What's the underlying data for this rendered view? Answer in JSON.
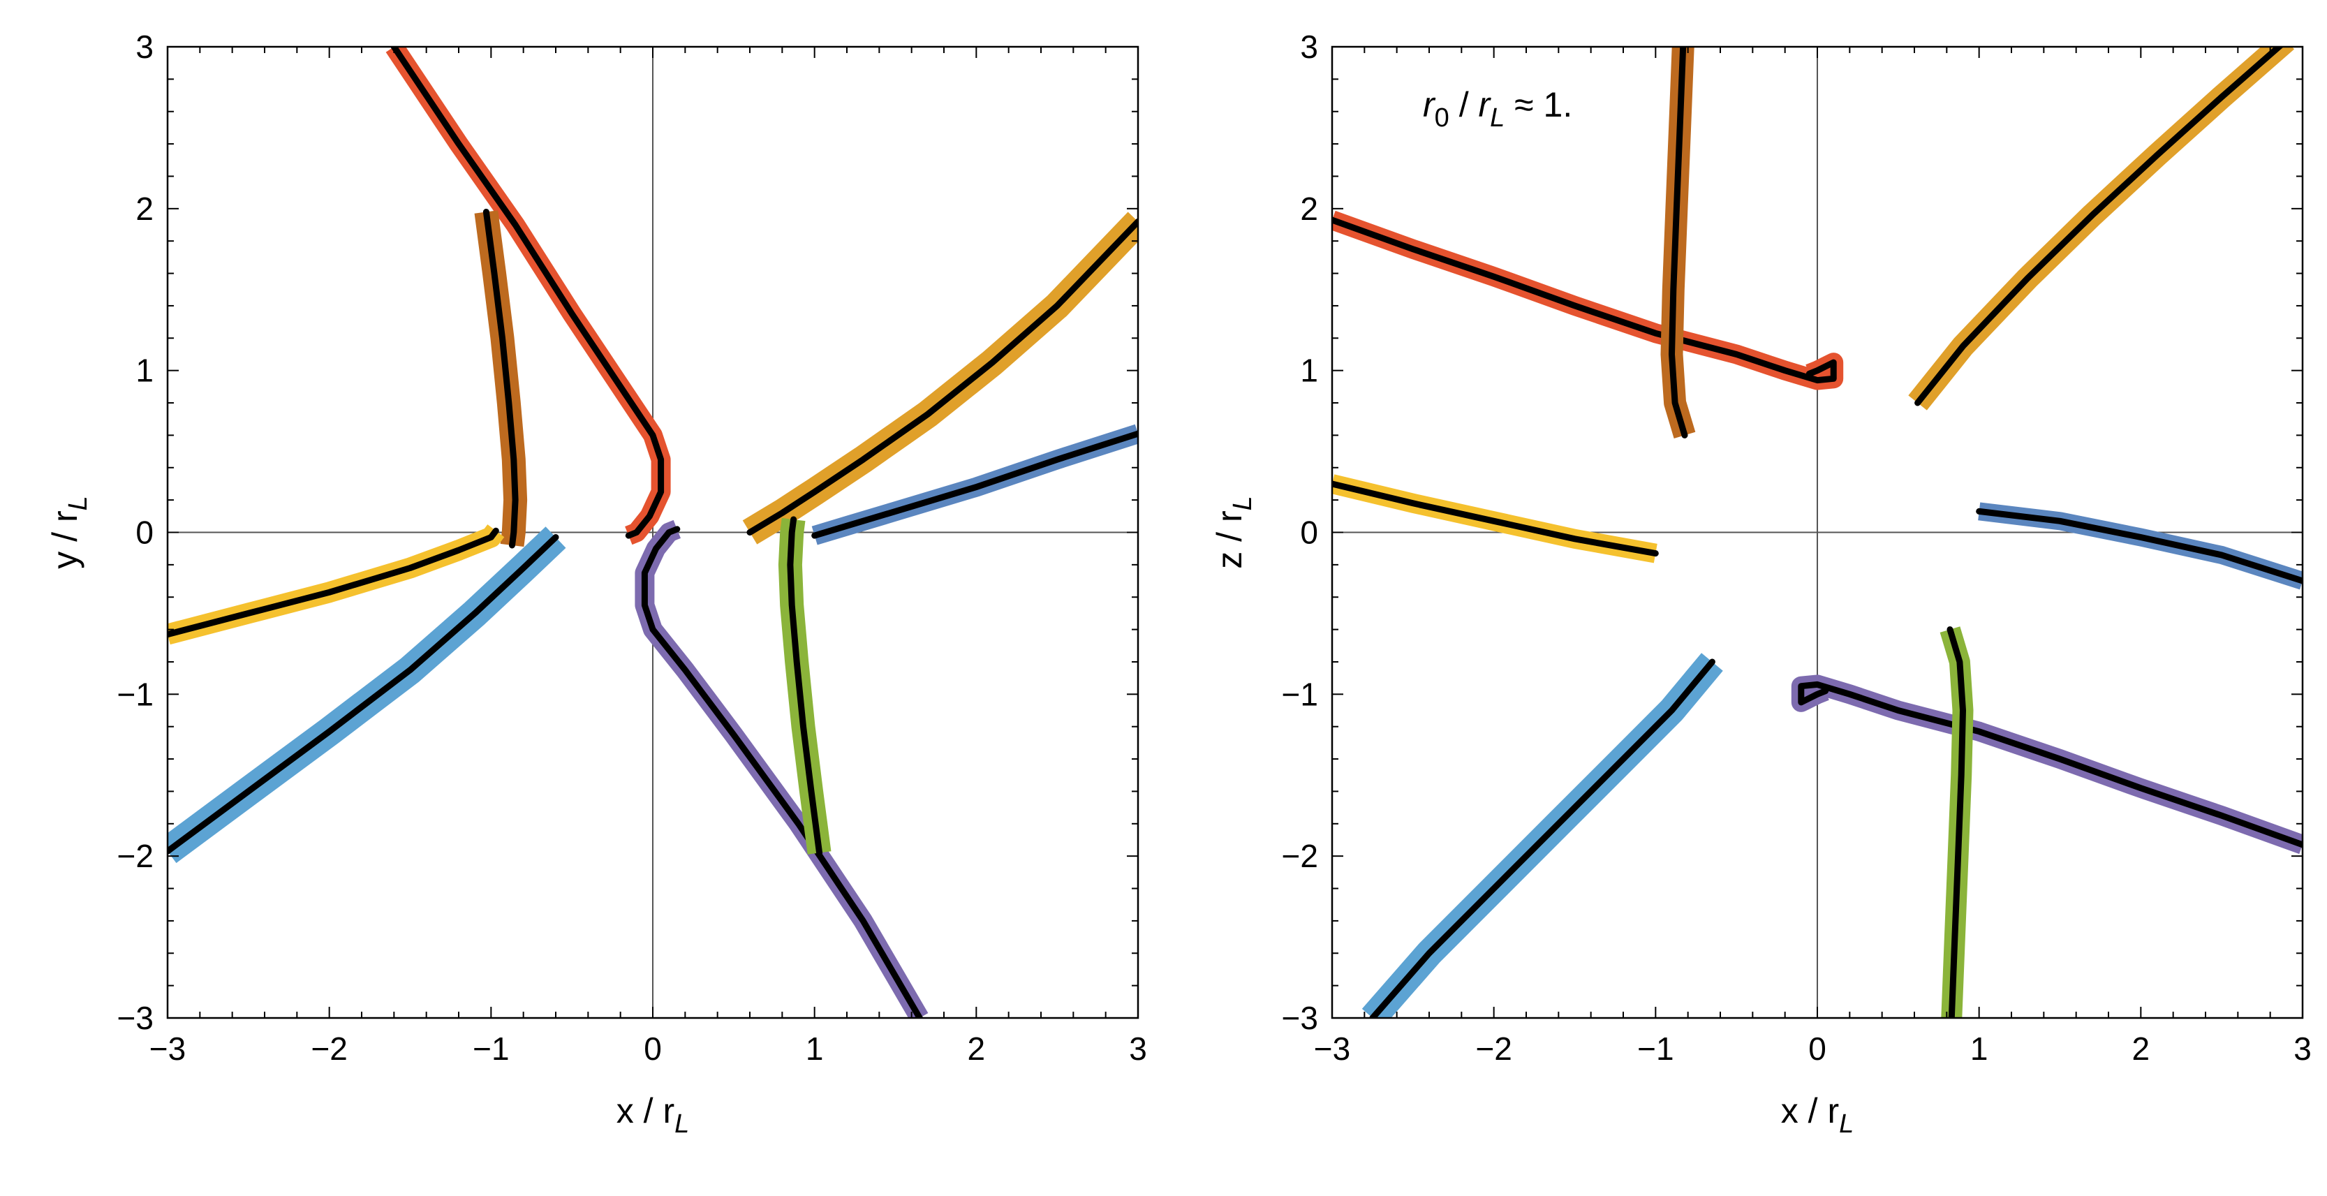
{
  "chart_data": [
    {
      "type": "line",
      "xlabel": {
        "main": "x / r",
        "sub": "L"
      },
      "ylabel": {
        "main": "y / r",
        "sub": "L"
      },
      "xlim": [
        -3,
        3
      ],
      "ylim": [
        -3,
        3
      ],
      "xticks": [
        -3,
        -2,
        -1,
        0,
        1,
        2,
        3
      ],
      "yticks": [
        -3,
        -2,
        -1,
        0,
        1,
        2,
        3
      ],
      "tick_labels": [
        "−3",
        "−2",
        "−1",
        "0",
        "1",
        "2",
        "3"
      ],
      "grid": false,
      "zero_lines": true,
      "series": [
        {
          "color": "#E5532F",
          "width": 28,
          "points": [
            [
              -1.6,
              3.0
            ],
            [
              -1.2,
              2.4
            ],
            [
              -0.85,
              1.9
            ],
            [
              -0.5,
              1.35
            ],
            [
              -0.2,
              0.9
            ],
            [
              0.0,
              0.6
            ],
            [
              0.05,
              0.45
            ],
            [
              0.05,
              0.25
            ],
            [
              -0.02,
              0.1
            ],
            [
              -0.1,
              0.0
            ],
            [
              -0.15,
              -0.02
            ]
          ]
        },
        {
          "color": "#BD6A1F",
          "width": 34,
          "points": [
            [
              -1.03,
              1.98
            ],
            [
              -0.98,
              1.6
            ],
            [
              -0.93,
              1.2
            ],
            [
              -0.89,
              0.8
            ],
            [
              -0.86,
              0.45
            ],
            [
              -0.85,
              0.2
            ],
            [
              -0.86,
              0.0
            ],
            [
              -0.87,
              -0.08
            ]
          ]
        },
        {
          "color": "#F5C12E",
          "width": 30,
          "points": [
            [
              -3.0,
              -0.63
            ],
            [
              -2.5,
              -0.5
            ],
            [
              -2.0,
              -0.37
            ],
            [
              -1.5,
              -0.22
            ],
            [
              -1.2,
              -0.11
            ],
            [
              -1.0,
              -0.03
            ],
            [
              -0.97,
              0.01
            ]
          ]
        },
        {
          "color": "#5CA3D3",
          "width": 42,
          "points": [
            [
              -3.0,
              -1.97
            ],
            [
              -2.5,
              -1.6
            ],
            [
              -2.0,
              -1.23
            ],
            [
              -1.5,
              -0.85
            ],
            [
              -1.1,
              -0.5
            ],
            [
              -0.8,
              -0.22
            ],
            [
              -0.6,
              -0.03
            ]
          ]
        },
        {
          "color": "#E0A02A",
          "width": 40,
          "points": [
            [
              0.6,
              0.0
            ],
            [
              0.8,
              0.12
            ],
            [
              1.0,
              0.25
            ],
            [
              1.3,
              0.45
            ],
            [
              1.7,
              0.73
            ],
            [
              2.1,
              1.05
            ],
            [
              2.5,
              1.4
            ],
            [
              3.0,
              1.92
            ]
          ]
        },
        {
          "color": "#5B86BF",
          "width": 28,
          "points": [
            [
              1.0,
              -0.02
            ],
            [
              1.2,
              0.04
            ],
            [
              1.5,
              0.13
            ],
            [
              2.0,
              0.28
            ],
            [
              2.5,
              0.45
            ],
            [
              3.0,
              0.61
            ]
          ]
        },
        {
          "color": "#7D6BAF",
          "width": 28,
          "points": [
            [
              1.65,
              -3.0
            ],
            [
              1.3,
              -2.4
            ],
            [
              0.9,
              -1.8
            ],
            [
              0.5,
              -1.25
            ],
            [
              0.2,
              -0.85
            ],
            [
              0.0,
              -0.6
            ],
            [
              -0.05,
              -0.45
            ],
            [
              -0.05,
              -0.25
            ],
            [
              0.02,
              -0.1
            ],
            [
              0.1,
              0.0
            ],
            [
              0.15,
              0.02
            ]
          ]
        },
        {
          "color": "#8BB43A",
          "width": 34,
          "points": [
            [
              1.03,
              -1.98
            ],
            [
              0.98,
              -1.6
            ],
            [
              0.93,
              -1.2
            ],
            [
              0.89,
              -0.8
            ],
            [
              0.86,
              -0.45
            ],
            [
              0.85,
              -0.2
            ],
            [
              0.86,
              0.0
            ],
            [
              0.87,
              0.08
            ]
          ]
        }
      ]
    },
    {
      "type": "line",
      "xlabel": {
        "main": "x / r",
        "sub": "L"
      },
      "ylabel": {
        "main": "z / r",
        "sub": "L"
      },
      "xlim": [
        -3,
        3
      ],
      "ylim": [
        -3,
        3
      ],
      "xticks": [
        -3,
        -2,
        -1,
        0,
        1,
        2,
        3
      ],
      "yticks": [
        -3,
        -2,
        -1,
        0,
        1,
        2,
        3
      ],
      "tick_labels": [
        "−3",
        "−2",
        "−1",
        "0",
        "1",
        "2",
        "3"
      ],
      "grid": false,
      "zero_lines": true,
      "annotation": {
        "r": "r",
        "sub0": "0",
        "slash": " / ",
        "r2": "r",
        "subL": "L",
        "tail": " ≈ 1."
      },
      "series": [
        {
          "color": "#E5532F",
          "width": 28,
          "points": [
            [
              -3.0,
              1.93
            ],
            [
              -2.5,
              1.75
            ],
            [
              -2.0,
              1.58
            ],
            [
              -1.5,
              1.4
            ],
            [
              -1.0,
              1.23
            ],
            [
              -0.5,
              1.1
            ],
            [
              -0.2,
              1.0
            ],
            [
              0.0,
              0.94
            ],
            [
              0.1,
              0.95
            ],
            [
              0.1,
              1.05
            ],
            [
              0.0,
              1.0
            ],
            [
              -0.05,
              0.98
            ]
          ]
        },
        {
          "color": "#BD6A1F",
          "width": 32,
          "points": [
            [
              -0.83,
              3.0
            ],
            [
              -0.85,
              2.5
            ],
            [
              -0.87,
              2.0
            ],
            [
              -0.89,
              1.5
            ],
            [
              -0.9,
              1.1
            ],
            [
              -0.88,
              0.8
            ],
            [
              -0.82,
              0.6
            ]
          ]
        },
        {
          "color": "#F5C12E",
          "width": 28,
          "points": [
            [
              -3.0,
              0.3
            ],
            [
              -2.5,
              0.18
            ],
            [
              -2.0,
              0.07
            ],
            [
              -1.5,
              -0.04
            ],
            [
              -1.0,
              -0.13
            ]
          ]
        },
        {
          "color": "#5CA3D3",
          "width": 40,
          "points": [
            [
              -2.75,
              -3.0
            ],
            [
              -2.4,
              -2.6
            ],
            [
              -2.0,
              -2.2
            ],
            [
              -1.6,
              -1.8
            ],
            [
              -1.2,
              -1.4
            ],
            [
              -0.9,
              -1.1
            ],
            [
              -0.65,
              -0.8
            ]
          ]
        },
        {
          "color": "#E0A02A",
          "width": 34,
          "points": [
            [
              0.62,
              0.8
            ],
            [
              0.9,
              1.15
            ],
            [
              1.3,
              1.57
            ],
            [
              1.7,
              1.96
            ],
            [
              2.1,
              2.33
            ],
            [
              2.5,
              2.69
            ],
            [
              2.9,
              3.04
            ]
          ]
        },
        {
          "color": "#5B86BF",
          "width": 26,
          "points": [
            [
              1.0,
              0.13
            ],
            [
              1.5,
              0.07
            ],
            [
              2.0,
              -0.03
            ],
            [
              2.5,
              -0.14
            ],
            [
              3.0,
              -0.3
            ]
          ]
        },
        {
          "color": "#7D6BAF",
          "width": 28,
          "points": [
            [
              3.0,
              -1.93
            ],
            [
              2.5,
              -1.75
            ],
            [
              2.0,
              -1.58
            ],
            [
              1.5,
              -1.4
            ],
            [
              1.0,
              -1.23
            ],
            [
              0.5,
              -1.1
            ],
            [
              0.2,
              -1.0
            ],
            [
              0.0,
              -0.94
            ],
            [
              -0.1,
              -0.95
            ],
            [
              -0.1,
              -1.05
            ],
            [
              0.0,
              -1.0
            ],
            [
              0.05,
              -0.98
            ]
          ]
        },
        {
          "color": "#8BB43A",
          "width": 30,
          "points": [
            [
              0.83,
              -3.0
            ],
            [
              0.85,
              -2.5
            ],
            [
              0.87,
              -2.0
            ],
            [
              0.89,
              -1.5
            ],
            [
              0.9,
              -1.1
            ],
            [
              0.88,
              -0.8
            ],
            [
              0.82,
              -0.6
            ]
          ]
        }
      ]
    }
  ]
}
